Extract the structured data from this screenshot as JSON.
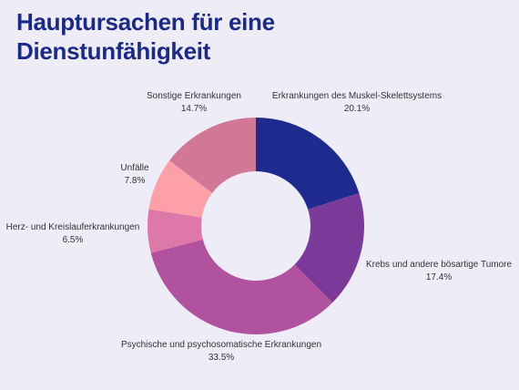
{
  "chart_data": {
    "type": "pie",
    "title_lines": [
      "Hauptursachen für eine",
      "Dienstunfähigkeit"
    ],
    "categories": [
      "Erkrankungen des Muskel-Skelettsystems",
      "Krebs und andere bösartige Tumore",
      "Psychische und psychosomatische Erkrankungen",
      "Herz- und Kreislauferkrankungen",
      "Unfälle",
      "Sonstige Erkrankungen"
    ],
    "values": [
      20.1,
      17.4,
      33.5,
      6.5,
      7.8,
      14.7
    ],
    "value_labels": [
      "20.1%",
      "17.4%",
      "33.5%",
      "6.5%",
      "7.8%",
      "14.7%"
    ],
    "colors": [
      "#1e2a8e",
      "#7b3a99",
      "#b1529e",
      "#de78a8",
      "#ffa0a8",
      "#d27897"
    ],
    "legend": "none"
  }
}
